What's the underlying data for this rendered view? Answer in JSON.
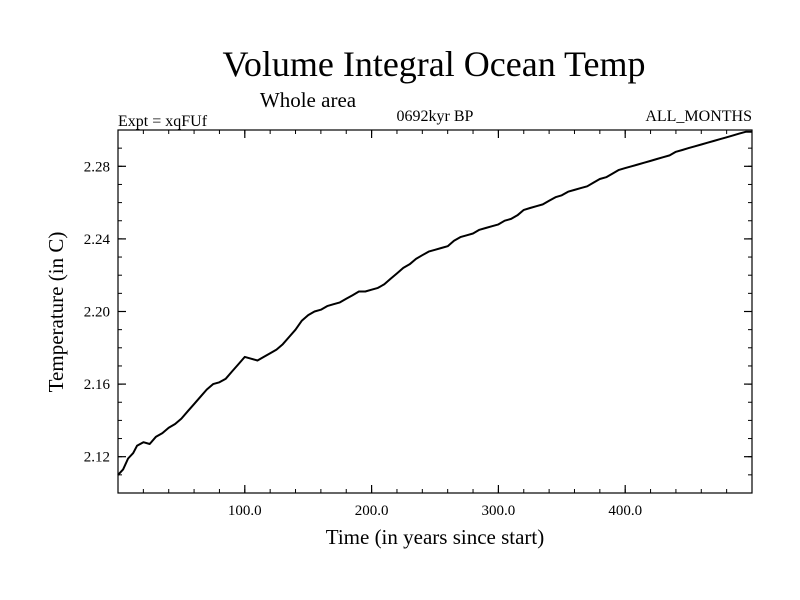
{
  "chart_data": {
    "type": "line",
    "title": "Volume Integral Ocean Temp",
    "subtitle": "Whole area",
    "experiment_label": "Expt = xqFUf",
    "period_label": "0692kyr BP",
    "months_label": "ALL_MONTHS",
    "xlabel": "Time (in years since start)",
    "ylabel": "Temperature (in C)",
    "xlim": [
      0,
      500
    ],
    "ylim": [
      2.1,
      2.3
    ],
    "x_ticks": [
      100,
      200,
      300,
      400
    ],
    "x_tick_labels": [
      "100.0",
      "200.0",
      "300.0",
      "400.0"
    ],
    "y_ticks": [
      2.12,
      2.16,
      2.2,
      2.24,
      2.28
    ],
    "y_tick_labels": [
      "2.12",
      "2.16",
      "2.20",
      "2.24",
      "2.28"
    ],
    "x_minor_step": 20,
    "y_minor_step": 0.01,
    "grid": false,
    "line_color": "#000000",
    "series": [
      {
        "name": "Volume integral ocean temperature",
        "points": [
          [
            0,
            2.11
          ],
          [
            4,
            2.113
          ],
          [
            8,
            2.119
          ],
          [
            12,
            2.122
          ],
          [
            15,
            2.126
          ],
          [
            20,
            2.128
          ],
          [
            25,
            2.127
          ],
          [
            30,
            2.131
          ],
          [
            35,
            2.133
          ],
          [
            40,
            2.136
          ],
          [
            45,
            2.138
          ],
          [
            50,
            2.141
          ],
          [
            55,
            2.145
          ],
          [
            60,
            2.149
          ],
          [
            65,
            2.153
          ],
          [
            70,
            2.157
          ],
          [
            75,
            2.16
          ],
          [
            80,
            2.161
          ],
          [
            85,
            2.163
          ],
          [
            90,
            2.167
          ],
          [
            95,
            2.171
          ],
          [
            100,
            2.175
          ],
          [
            105,
            2.174
          ],
          [
            110,
            2.173
          ],
          [
            115,
            2.175
          ],
          [
            120,
            2.177
          ],
          [
            125,
            2.179
          ],
          [
            130,
            2.182
          ],
          [
            135,
            2.186
          ],
          [
            140,
            2.19
          ],
          [
            145,
            2.195
          ],
          [
            150,
            2.198
          ],
          [
            155,
            2.2
          ],
          [
            160,
            2.201
          ],
          [
            165,
            2.203
          ],
          [
            170,
            2.204
          ],
          [
            175,
            2.205
          ],
          [
            180,
            2.207
          ],
          [
            185,
            2.209
          ],
          [
            190,
            2.211
          ],
          [
            195,
            2.211
          ],
          [
            200,
            2.212
          ],
          [
            205,
            2.213
          ],
          [
            210,
            2.215
          ],
          [
            215,
            2.218
          ],
          [
            220,
            2.221
          ],
          [
            225,
            2.224
          ],
          [
            230,
            2.226
          ],
          [
            235,
            2.229
          ],
          [
            240,
            2.231
          ],
          [
            245,
            2.233
          ],
          [
            250,
            2.234
          ],
          [
            255,
            2.235
          ],
          [
            260,
            2.236
          ],
          [
            265,
            2.239
          ],
          [
            270,
            2.241
          ],
          [
            275,
            2.242
          ],
          [
            280,
            2.243
          ],
          [
            285,
            2.245
          ],
          [
            290,
            2.246
          ],
          [
            295,
            2.247
          ],
          [
            300,
            2.248
          ],
          [
            305,
            2.25
          ],
          [
            310,
            2.251
          ],
          [
            315,
            2.253
          ],
          [
            320,
            2.256
          ],
          [
            325,
            2.257
          ],
          [
            330,
            2.258
          ],
          [
            335,
            2.259
          ],
          [
            340,
            2.261
          ],
          [
            345,
            2.263
          ],
          [
            350,
            2.264
          ],
          [
            355,
            2.266
          ],
          [
            360,
            2.267
          ],
          [
            365,
            2.268
          ],
          [
            370,
            2.269
          ],
          [
            375,
            2.271
          ],
          [
            380,
            2.273
          ],
          [
            385,
            2.274
          ],
          [
            390,
            2.276
          ],
          [
            395,
            2.278
          ],
          [
            400,
            2.279
          ],
          [
            405,
            2.28
          ],
          [
            410,
            2.281
          ],
          [
            415,
            2.282
          ],
          [
            420,
            2.283
          ],
          [
            425,
            2.284
          ],
          [
            430,
            2.285
          ],
          [
            435,
            2.286
          ],
          [
            440,
            2.288
          ],
          [
            445,
            2.289
          ],
          [
            450,
            2.29
          ],
          [
            455,
            2.291
          ],
          [
            460,
            2.292
          ],
          [
            465,
            2.293
          ],
          [
            470,
            2.294
          ],
          [
            475,
            2.295
          ],
          [
            480,
            2.296
          ],
          [
            485,
            2.297
          ],
          [
            490,
            2.298
          ],
          [
            495,
            2.299
          ],
          [
            500,
            2.299
          ]
        ]
      }
    ]
  }
}
